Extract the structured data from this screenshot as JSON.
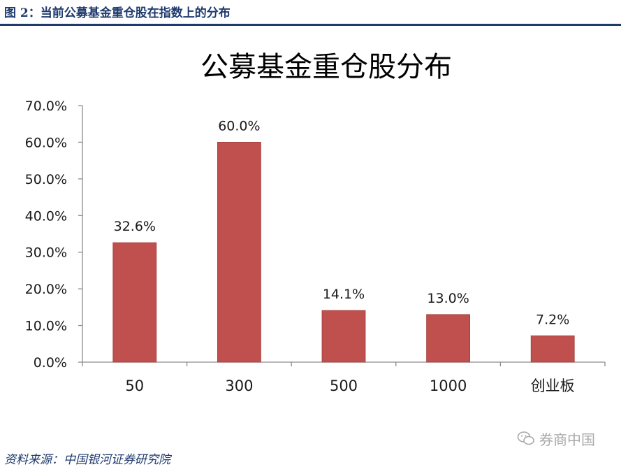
{
  "figure": {
    "caption": "图 2：当前公募基金重仓股在指数上的分布",
    "source": "资料来源：中国银河证券研究院",
    "watermark": "券商中国"
  },
  "colors": {
    "bar": "#c0504d",
    "bar_edge": "#a23d3a",
    "axis": "#8c8c8c",
    "text": "#1a1a1a",
    "rule": "#1f3a6e"
  },
  "chart_data": {
    "type": "bar",
    "title": "公募基金重仓股分布",
    "categories": [
      "50",
      "300",
      "500",
      "1000",
      "创业板"
    ],
    "values": [
      32.6,
      60.0,
      14.1,
      13.0,
      7.2
    ],
    "data_labels": [
      "32.6%",
      "60.0%",
      "14.1%",
      "13.0%",
      "7.2%"
    ],
    "yticks": [
      0,
      10,
      20,
      30,
      40,
      50,
      60,
      70
    ],
    "ytick_labels": [
      "0.0%",
      "10.0%",
      "20.0%",
      "30.0%",
      "40.0%",
      "50.0%",
      "60.0%",
      "70.0%"
    ],
    "ylim": [
      0,
      70
    ],
    "xlabel": "",
    "ylabel": "",
    "grid": false,
    "legend": "none"
  }
}
